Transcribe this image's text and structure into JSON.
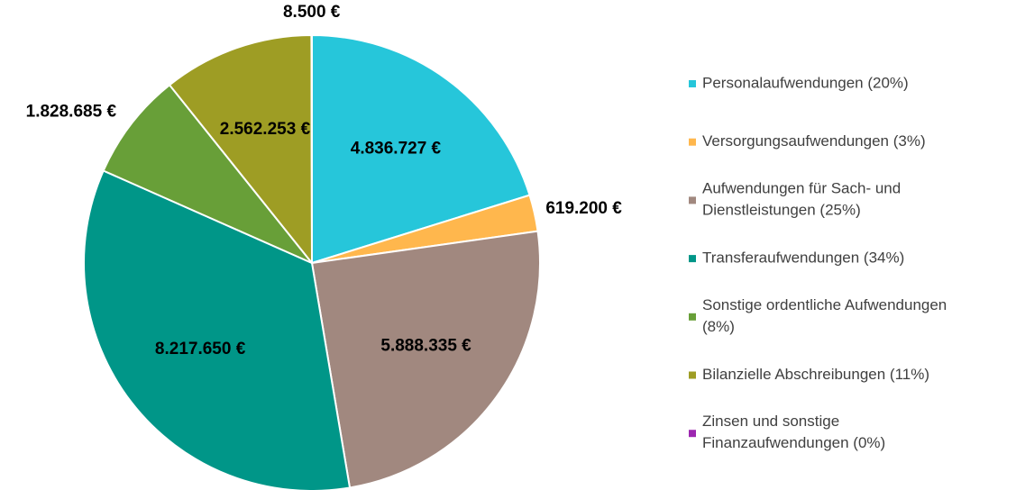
{
  "chart_data": {
    "type": "pie",
    "categories": [
      "Personalaufwendungen (20%)",
      "Versorgungsaufwendungen (3%)",
      "Aufwendungen für Sach- und Dienstleistungen (25%)",
      "Transferaufwendungen (34%)",
      "Sonstige ordentliche Aufwendungen (8%)",
      "Bilanzielle Abschreibungen (11%)",
      "Zinsen und sonstige Finanzaufwendungen (0%)"
    ],
    "values": [
      4836727,
      619200,
      5888335,
      8217650,
      1828685,
      2562253,
      8500
    ],
    "value_labels": [
      "4.836.727 €",
      "619.200 €",
      "5.888.335 €",
      "8.217.650 €",
      "1.828.685 €",
      "2.562.253 €",
      "8.500 €"
    ],
    "colors": [
      "#26c6da",
      "#ffb74d",
      "#a1887f",
      "#009688",
      "#689f38",
      "#9e9d24",
      "#9c27b0"
    ],
    "legend": "right"
  }
}
